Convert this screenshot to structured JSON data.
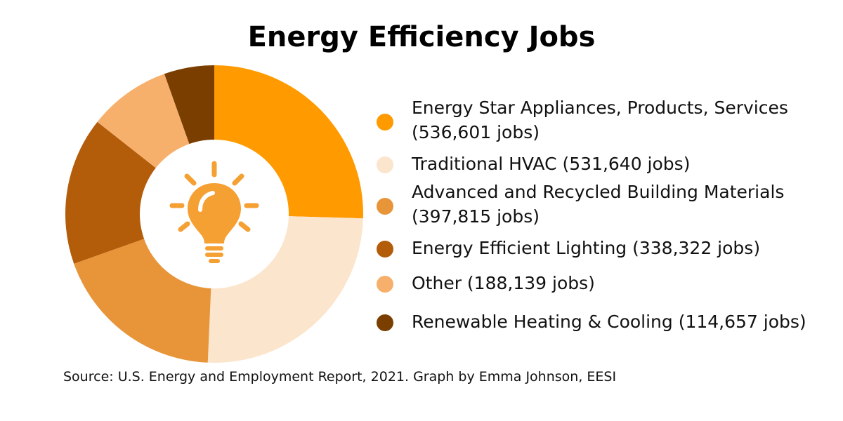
{
  "title": "Energy Efficiency Jobs",
  "source": "Source: U.S. Energy and Employment Report, 2021. Graph by Emma Johnson, EESI",
  "center_icon": "lightbulb-icon",
  "chart_data": {
    "type": "pie",
    "title": "Energy Efficiency Jobs",
    "donut": true,
    "legend_position": "right",
    "categories": [
      "Energy Star Appliances, Products, Services",
      "Traditional HVAC",
      "Advanced and Recycled Building Materials",
      "Energy Efficient Lighting",
      "Other",
      "Renewable Heating & Cooling"
    ],
    "values": [
      536601,
      531640,
      397815,
      338322,
      188139,
      114657
    ],
    "colors": [
      "#FF9A00",
      "#FCE5CD",
      "#E8953A",
      "#B35C0A",
      "#F6B06C",
      "#7A3F00"
    ],
    "legend": [
      {
        "line1": "Energy Star Appliances, Products, Services",
        "line2": "(536,601 jobs)"
      },
      {
        "line1": "Traditional HVAC (531,640 jobs)",
        "line2": ""
      },
      {
        "line1": "Advanced and Recycled Building Materials",
        "line2": "(397,815 jobs)"
      },
      {
        "line1": "Energy Efficient Lighting (338,322 jobs)",
        "line2": ""
      },
      {
        "line1": "Other (188,139 jobs)",
        "line2": ""
      },
      {
        "line1": "Renewable Heating & Cooling (114,657 jobs)",
        "line2": ""
      }
    ],
    "icon_color": "#F5A033"
  }
}
